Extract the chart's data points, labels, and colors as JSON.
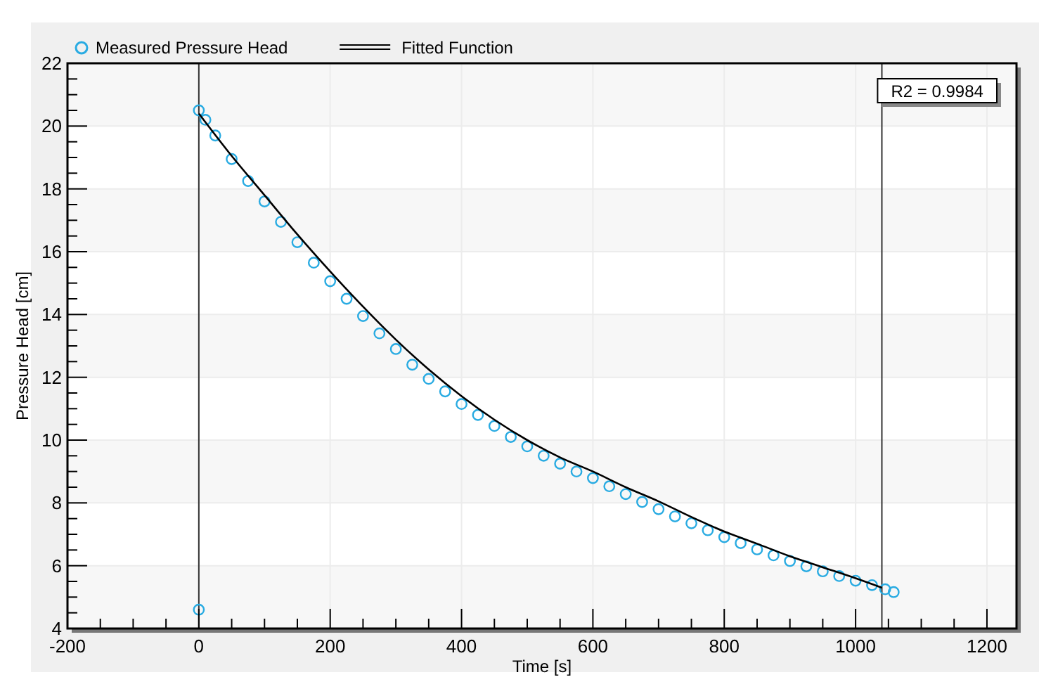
{
  "chart_data": {
    "type": "scatter",
    "xlabel": "Time [s]",
    "ylabel": "Pressure Head [cm]",
    "xlim": [
      -200,
      1245
    ],
    "ylim": [
      4,
      22
    ],
    "xticks": [
      -200,
      {
        "value": -150,
        "label": null
      },
      {
        "value": -100,
        "label": null
      },
      {
        "value": -50,
        "label": null
      },
      0,
      {
        "value": 50,
        "label": null
      },
      {
        "value": 100,
        "label": null
      },
      {
        "value": 150,
        "label": null
      },
      200,
      {
        "value": 250,
        "label": null
      },
      {
        "value": 300,
        "label": null
      },
      {
        "value": 350,
        "label": null
      },
      400,
      {
        "value": 450,
        "label": null
      },
      {
        "value": 500,
        "label": null
      },
      {
        "value": 550,
        "label": null
      },
      600,
      {
        "value": 650,
        "label": null
      },
      {
        "value": 700,
        "label": null
      },
      {
        "value": 750,
        "label": null
      },
      800,
      {
        "value": 850,
        "label": null
      },
      {
        "value": 900,
        "label": null
      },
      {
        "value": 950,
        "label": null
      },
      1000,
      {
        "value": 1050,
        "label": null
      },
      {
        "value": 1100,
        "label": null
      },
      {
        "value": 1150,
        "label": null
      },
      1200
    ],
    "yticks": [
      4,
      {
        "value": 4.5,
        "label": null
      },
      {
        "value": 5,
        "label": null
      },
      {
        "value": 5.5,
        "label": null
      },
      6,
      {
        "value": 6.5,
        "label": null
      },
      {
        "value": 7,
        "label": null
      },
      {
        "value": 7.5,
        "label": null
      },
      8,
      {
        "value": 8.5,
        "label": null
      },
      {
        "value": 9,
        "label": null
      },
      {
        "value": 9.5,
        "label": null
      },
      10,
      {
        "value": 10.5,
        "label": null
      },
      {
        "value": 11,
        "label": null
      },
      {
        "value": 11.5,
        "label": null
      },
      12,
      {
        "value": 12.5,
        "label": null
      },
      {
        "value": 13,
        "label": null
      },
      {
        "value": 13.5,
        "label": null
      },
      14,
      {
        "value": 14.5,
        "label": null
      },
      {
        "value": 15,
        "label": null
      },
      {
        "value": 15.5,
        "label": null
      },
      16,
      {
        "value": 16.5,
        "label": null
      },
      {
        "value": 17,
        "label": null
      },
      {
        "value": 17.5,
        "label": null
      },
      18,
      {
        "value": 18.5,
        "label": null
      },
      {
        "value": 19,
        "label": null
      },
      {
        "value": 19.5,
        "label": null
      },
      20,
      {
        "value": 20.5,
        "label": null
      },
      {
        "value": 21,
        "label": null
      },
      {
        "value": 21.5,
        "label": null
      },
      22
    ],
    "grid": true,
    "legend": "top left",
    "marker": "circle",
    "ref_lines": [
      {
        "axis": "x",
        "value": 0,
        "color": "#333333"
      },
      {
        "axis": "x",
        "value": 1040,
        "color": "#333333"
      }
    ],
    "annotations": [
      "R2 = 0.9984"
    ],
    "series": [
      {
        "name": "Measured Pressure Head",
        "type": "scatter",
        "color": "#29abe2",
        "x": [
          0,
          0,
          10,
          25,
          50,
          75,
          100,
          125,
          150,
          175,
          200,
          225,
          250,
          275,
          300,
          325,
          350,
          375,
          400,
          425,
          450,
          475,
          500,
          525,
          550,
          575,
          600,
          625,
          650,
          675,
          700,
          725,
          750,
          775,
          800,
          825,
          850,
          875,
          900,
          925,
          950,
          975,
          1000,
          1025,
          1045,
          1058
        ],
        "values": [
          4.6,
          20.5,
          20.2,
          19.7,
          18.95,
          18.25,
          17.6,
          16.95,
          16.3,
          15.65,
          15.06,
          14.5,
          13.95,
          13.4,
          12.9,
          12.4,
          11.95,
          11.55,
          11.15,
          10.8,
          10.45,
          10.1,
          9.8,
          9.5,
          9.25,
          9.0,
          8.79,
          8.53,
          8.28,
          8.03,
          7.8,
          7.57,
          7.35,
          7.13,
          6.91,
          6.72,
          6.52,
          6.33,
          6.15,
          5.98,
          5.82,
          5.67,
          5.52,
          5.38,
          5.25,
          5.16
        ]
      },
      {
        "name": "Fitted Function",
        "type": "line",
        "color": "#000000",
        "marker": "none",
        "x": [
          0,
          50,
          100,
          150,
          200,
          250,
          300,
          350,
          400,
          450,
          500,
          550,
          600,
          650,
          700,
          750,
          800,
          850,
          900,
          950,
          1000,
          1040
        ],
        "values": [
          20.4,
          19.05,
          17.8,
          16.55,
          15.37,
          14.25,
          13.2,
          12.25,
          11.4,
          10.65,
          10.0,
          9.45,
          9.0,
          8.5,
          8.05,
          7.55,
          7.09,
          6.7,
          6.3,
          5.95,
          5.6,
          5.3
        ]
      }
    ]
  }
}
